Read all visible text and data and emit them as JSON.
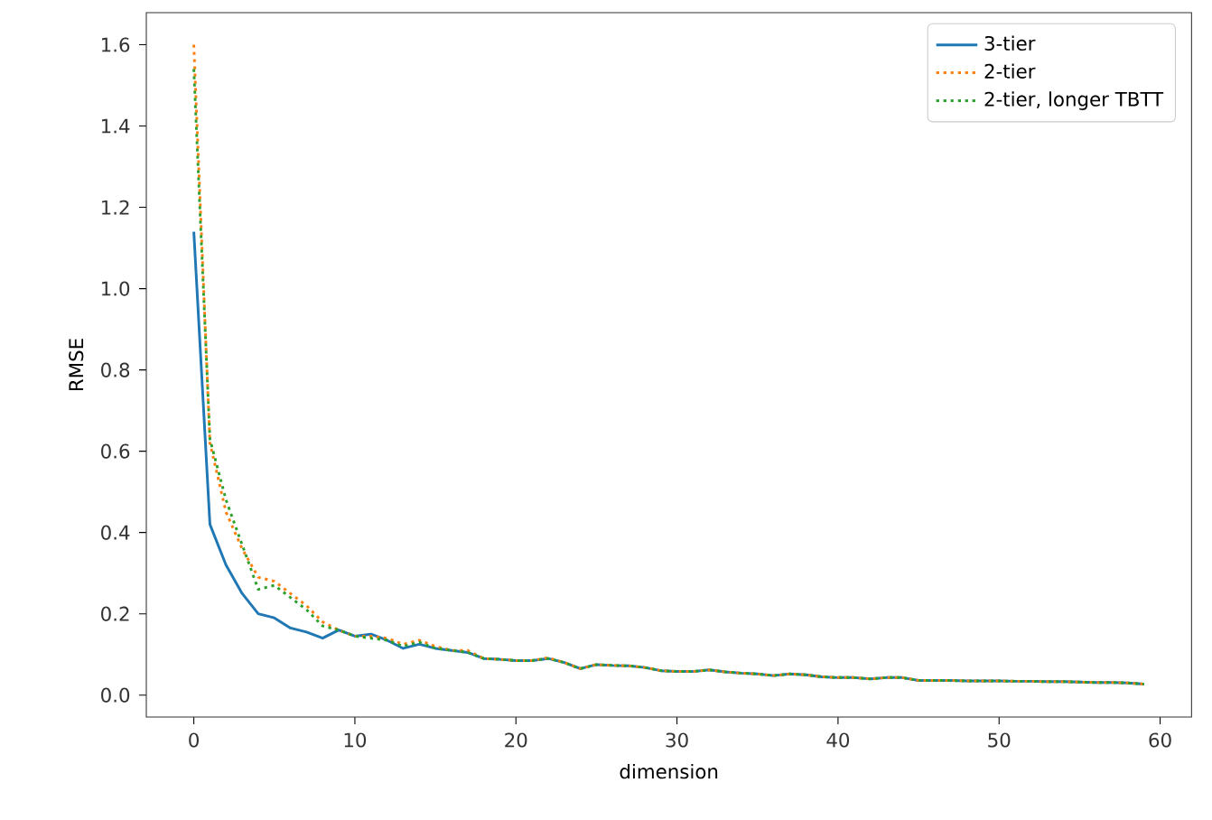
{
  "chart_data": {
    "type": "line",
    "xlabel": "dimension",
    "ylabel": "RMSE",
    "x": [
      0,
      1,
      2,
      3,
      4,
      5,
      6,
      7,
      8,
      9,
      10,
      11,
      12,
      13,
      14,
      15,
      16,
      17,
      18,
      19,
      20,
      21,
      22,
      23,
      24,
      25,
      26,
      27,
      28,
      29,
      30,
      31,
      32,
      33,
      34,
      35,
      36,
      37,
      38,
      39,
      40,
      41,
      42,
      43,
      44,
      45,
      46,
      47,
      48,
      49,
      50,
      51,
      52,
      53,
      54,
      55,
      56,
      57,
      58,
      59
    ],
    "series": [
      {
        "name": "3-tier",
        "color": "#1f77b4",
        "line_style": "solid",
        "values": [
          1.14,
          0.42,
          0.32,
          0.25,
          0.2,
          0.19,
          0.165,
          0.155,
          0.14,
          0.16,
          0.145,
          0.15,
          0.135,
          0.115,
          0.125,
          0.115,
          0.11,
          0.105,
          0.09,
          0.088,
          0.085,
          0.085,
          0.09,
          0.08,
          0.065,
          0.075,
          0.073,
          0.072,
          0.068,
          0.06,
          0.058,
          0.058,
          0.062,
          0.057,
          0.054,
          0.052,
          0.048,
          0.052,
          0.05,
          0.045,
          0.043,
          0.043,
          0.04,
          0.043,
          0.043,
          0.036,
          0.036,
          0.036,
          0.035,
          0.035,
          0.035,
          0.034,
          0.034,
          0.033,
          0.033,
          0.032,
          0.031,
          0.031,
          0.03,
          0.027
        ]
      },
      {
        "name": "2-tier",
        "color": "#ff7f0e",
        "line_style": "dotted",
        "values": [
          1.6,
          0.62,
          0.45,
          0.36,
          0.29,
          0.28,
          0.25,
          0.22,
          0.18,
          0.16,
          0.145,
          0.145,
          0.14,
          0.125,
          0.135,
          0.12,
          0.11,
          0.11,
          0.09,
          0.088,
          0.085,
          0.085,
          0.092,
          0.08,
          0.065,
          0.075,
          0.073,
          0.072,
          0.068,
          0.06,
          0.058,
          0.058,
          0.062,
          0.057,
          0.054,
          0.052,
          0.048,
          0.052,
          0.05,
          0.045,
          0.043,
          0.043,
          0.04,
          0.043,
          0.043,
          0.036,
          0.036,
          0.036,
          0.035,
          0.035,
          0.035,
          0.034,
          0.034,
          0.033,
          0.033,
          0.032,
          0.031,
          0.031,
          0.03,
          0.027
        ]
      },
      {
        "name": "2-tier, longer TBTT",
        "color": "#2ca02c",
        "line_style": "dotted",
        "values": [
          1.54,
          0.63,
          0.48,
          0.37,
          0.26,
          0.27,
          0.24,
          0.21,
          0.17,
          0.16,
          0.145,
          0.14,
          0.135,
          0.12,
          0.13,
          0.115,
          0.11,
          0.105,
          0.09,
          0.088,
          0.085,
          0.085,
          0.09,
          0.08,
          0.065,
          0.075,
          0.073,
          0.072,
          0.068,
          0.06,
          0.058,
          0.058,
          0.062,
          0.057,
          0.054,
          0.052,
          0.048,
          0.052,
          0.05,
          0.045,
          0.043,
          0.043,
          0.04,
          0.043,
          0.043,
          0.036,
          0.036,
          0.036,
          0.035,
          0.035,
          0.035,
          0.034,
          0.034,
          0.033,
          0.033,
          0.032,
          0.031,
          0.031,
          0.03,
          0.027
        ]
      }
    ],
    "xlim": [
      -2.95,
      61.95
    ],
    "ylim": [
      -0.054,
      1.679
    ],
    "xticks": [
      0,
      10,
      20,
      30,
      40,
      50,
      60
    ],
    "yticks": [
      {
        "value": 0,
        "label": "0.0"
      },
      {
        "value": 0.2,
        "label": "0.2"
      },
      {
        "value": 0.4,
        "label": "0.4"
      },
      {
        "value": 0.6,
        "label": "0.6"
      },
      {
        "value": 0.8,
        "label": "0.8"
      },
      {
        "value": 1.0,
        "label": "1.0"
      },
      {
        "value": 1.2,
        "label": "1.2"
      },
      {
        "value": 1.4,
        "label": "1.4"
      },
      {
        "value": 1.6,
        "label": "1.6"
      }
    ],
    "legend": "top right",
    "grid": false,
    "marker": "none"
  }
}
